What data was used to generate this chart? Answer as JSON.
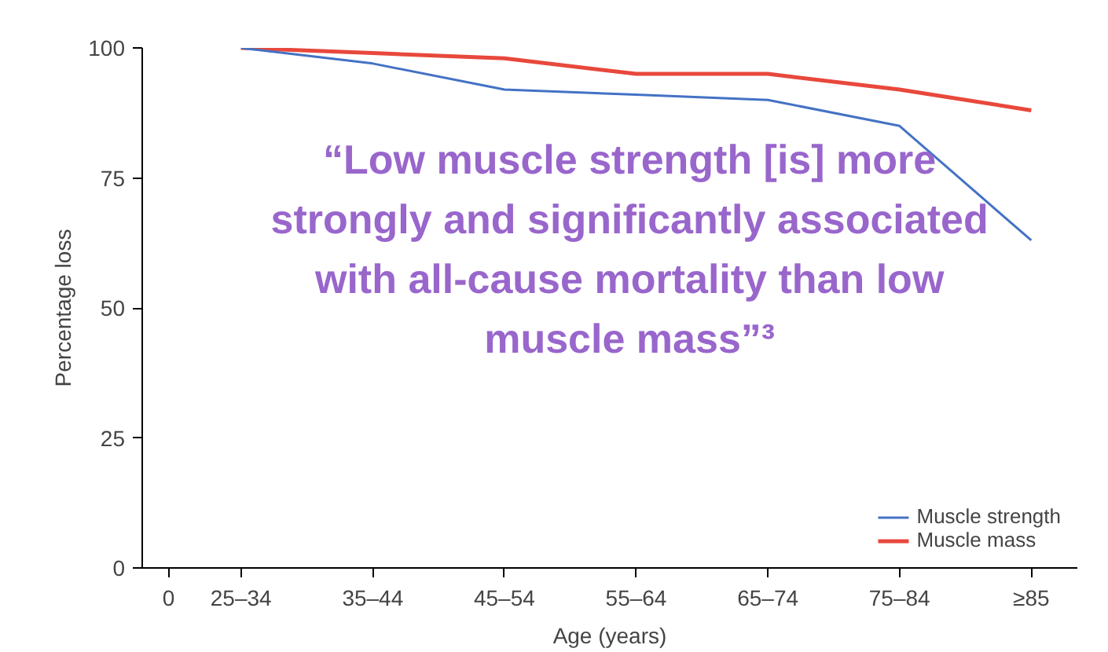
{
  "chart_data": {
    "type": "line",
    "xlabel": "Age (years)",
    "ylabel": "Percentage loss",
    "categories": [
      "25–34",
      "35–44",
      "45–54",
      "55–64",
      "65–74",
      "75–84",
      "≥85"
    ],
    "series": [
      {
        "name": "Muscle strength",
        "color": "#4472c4",
        "values": [
          100,
          97,
          92,
          91,
          90,
          85,
          63
        ]
      },
      {
        "name": "Muscle mass",
        "color": "#e8483c",
        "values": [
          100,
          99,
          98,
          95,
          95,
          92,
          88
        ]
      }
    ],
    "ylim": [
      0,
      100
    ],
    "yticks": [
      0,
      25,
      50,
      75,
      100
    ],
    "grid": false,
    "legend": "bottom right",
    "marker": "none",
    "line_style": "solid",
    "annotations": [
      "0",
      "“Low muscle strength [is] more\nstrongly and significantly associated\nwith all-cause mortality than low\nmuscle mass”³"
    ]
  }
}
